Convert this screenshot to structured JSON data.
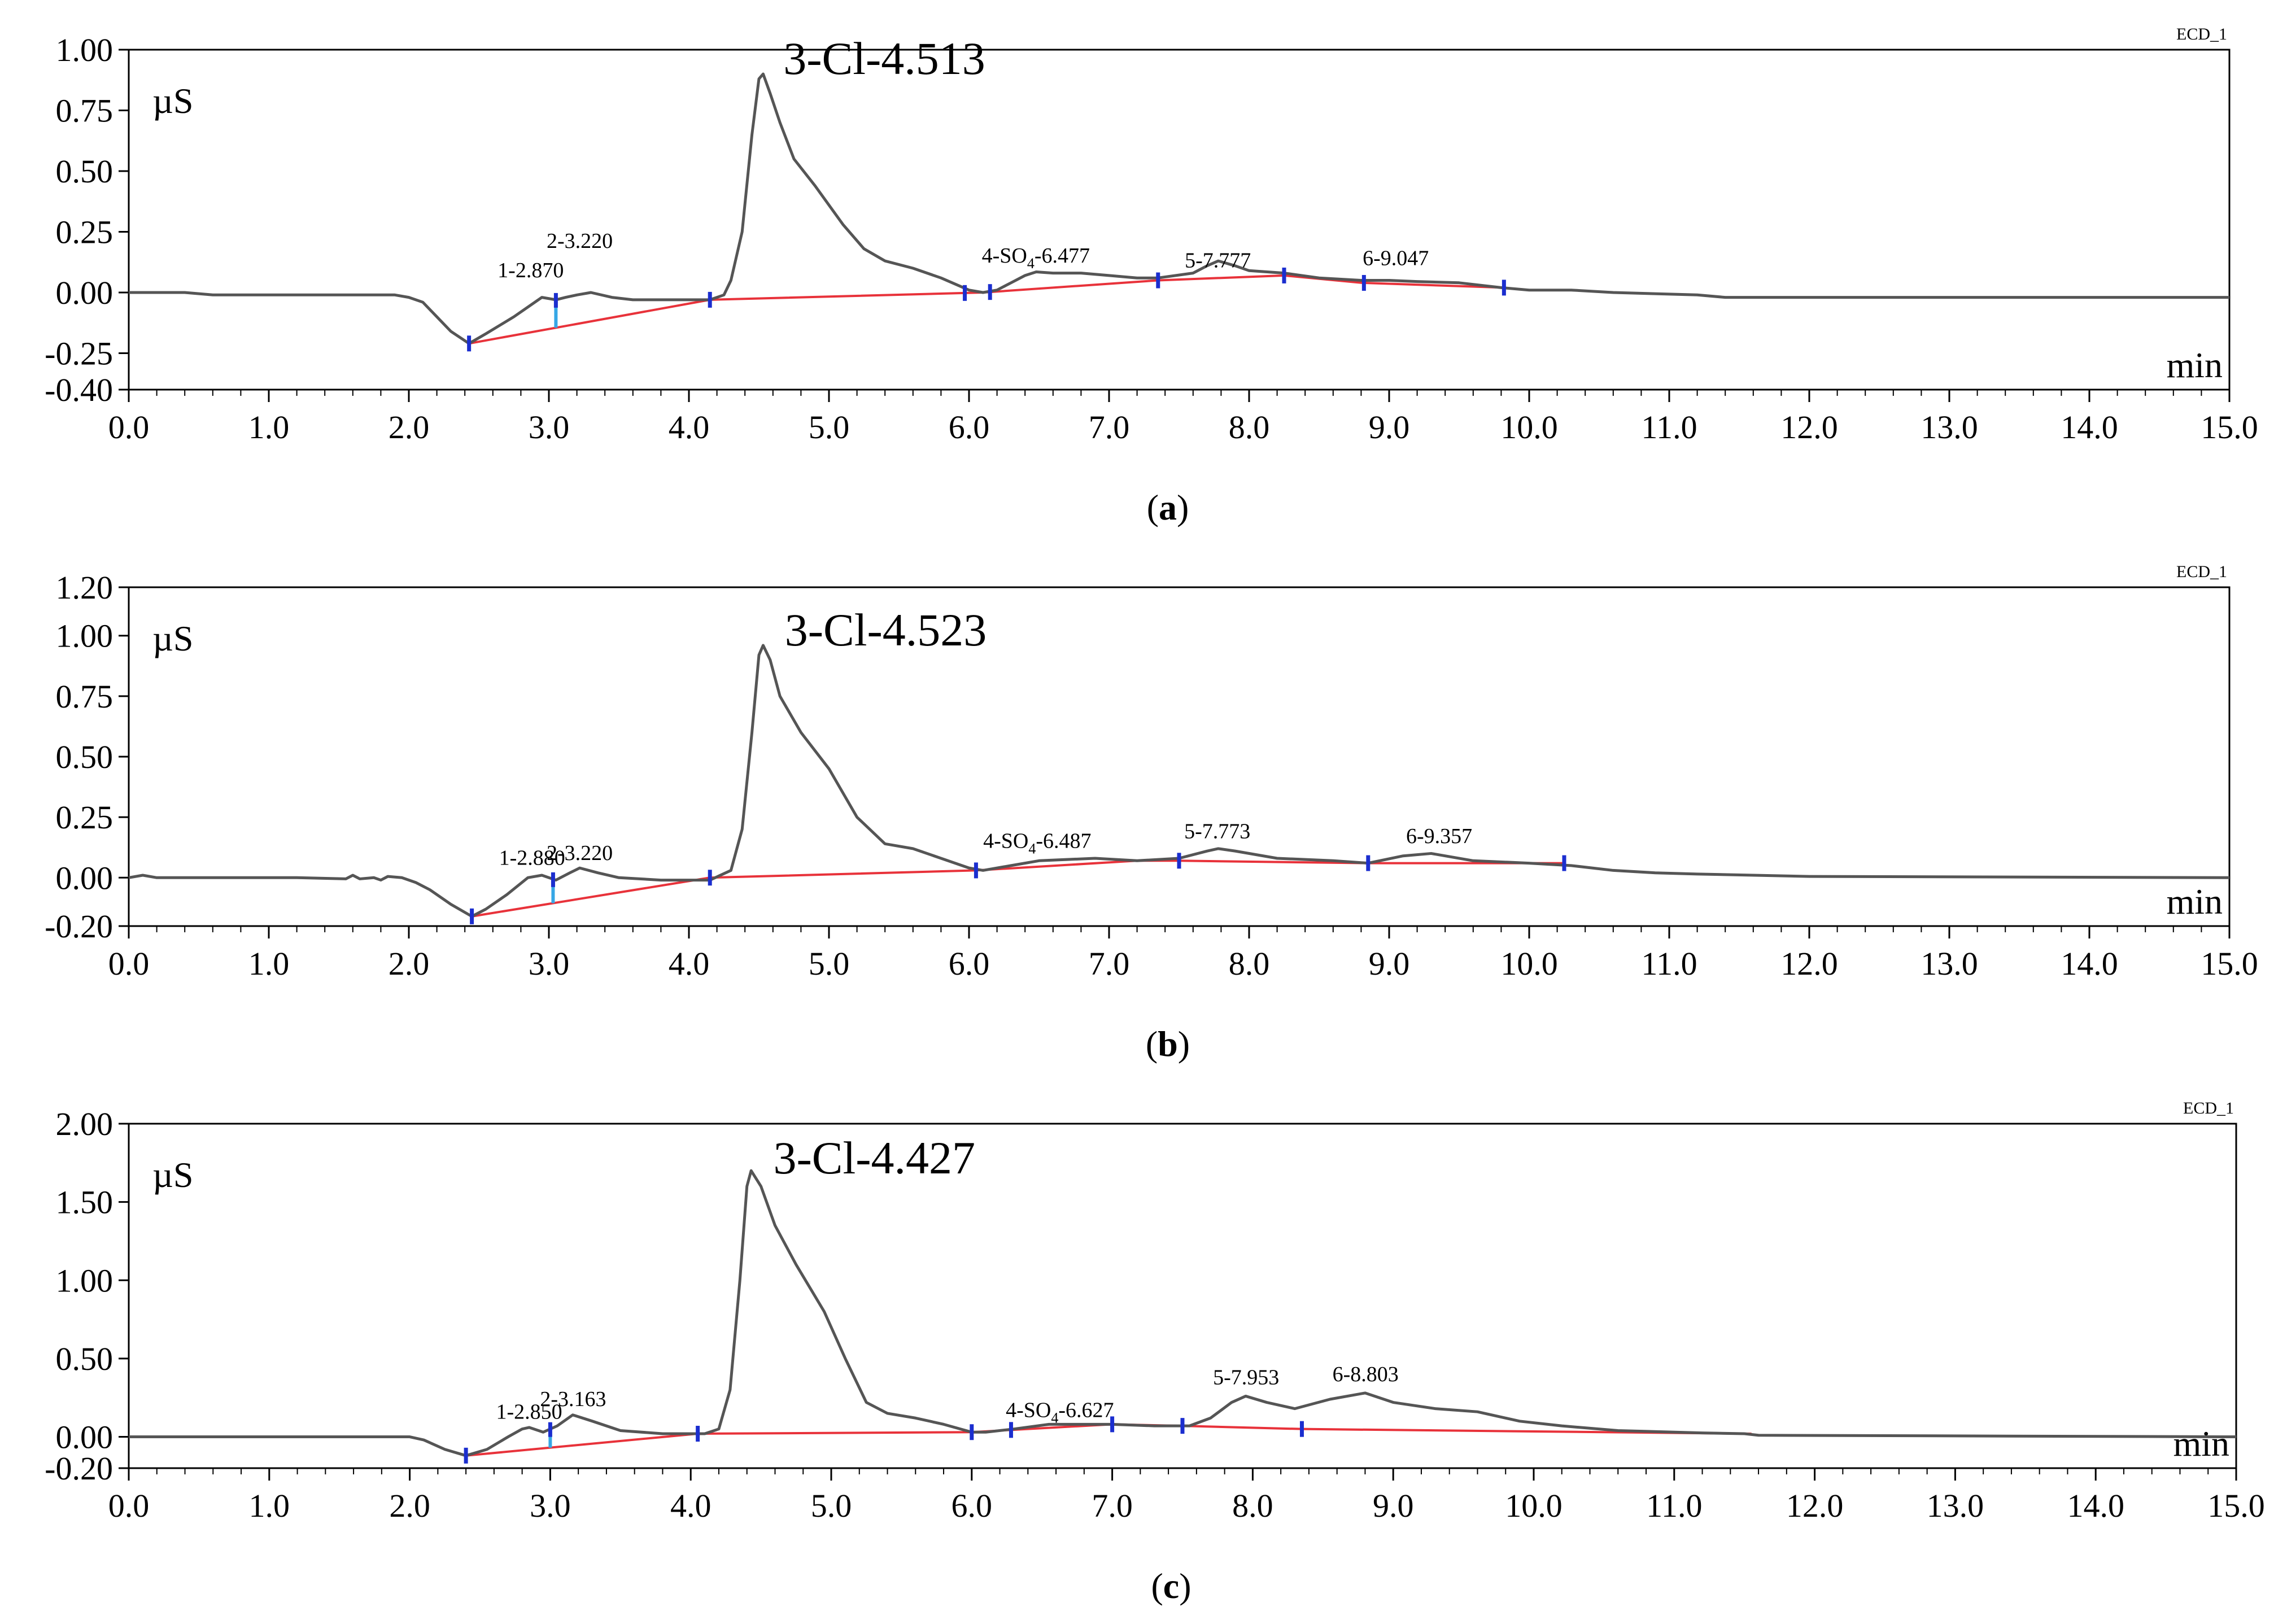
{
  "chart_data": [
    {
      "type": "line",
      "panel_label": "a",
      "channel_tag": "ECD_1",
      "ylabel": "µS",
      "xlabel": "min",
      "xlim": [
        0,
        15
      ],
      "ylim": [
        -0.4,
        1.0
      ],
      "x_ticks": [
        0,
        1,
        2,
        3,
        4,
        5,
        6,
        7,
        8,
        9,
        10,
        11,
        12,
        13,
        14,
        15
      ],
      "x_tick_labels": [
        "0.0",
        "1.0",
        "2.0",
        "3.0",
        "4.0",
        "5.0",
        "6.0",
        "7.0",
        "8.0",
        "9.0",
        "10.0",
        "11.0",
        "12.0",
        "13.0",
        "14.0",
        "15.0"
      ],
      "y_ticks": [
        -0.4,
        -0.25,
        0.0,
        0.25,
        0.5,
        0.75,
        1.0
      ],
      "y_tick_labels": [
        "-0.40",
        "-0.25",
        "0.00",
        "0.25",
        "0.50",
        "0.75",
        "1.00"
      ],
      "trace": [
        [
          0,
          0
        ],
        [
          0.4,
          0
        ],
        [
          0.6,
          -0.01
        ],
        [
          1.9,
          -0.01
        ],
        [
          2.0,
          -0.02
        ],
        [
          2.1,
          -0.04
        ],
        [
          2.2,
          -0.1
        ],
        [
          2.3,
          -0.16
        ],
        [
          2.43,
          -0.21
        ],
        [
          2.55,
          -0.17
        ],
        [
          2.75,
          -0.1
        ],
        [
          2.85,
          -0.06
        ],
        [
          2.95,
          -0.02
        ],
        [
          3.05,
          -0.03
        ],
        [
          3.12,
          -0.02
        ],
        [
          3.2,
          -0.01
        ],
        [
          3.3,
          0.0
        ],
        [
          3.45,
          -0.02
        ],
        [
          3.6,
          -0.03
        ],
        [
          4.0,
          -0.03
        ],
        [
          4.15,
          -0.03
        ],
        [
          4.25,
          -0.01
        ],
        [
          4.3,
          0.05
        ],
        [
          4.38,
          0.25
        ],
        [
          4.45,
          0.65
        ],
        [
          4.5,
          0.88
        ],
        [
          4.53,
          0.9
        ],
        [
          4.58,
          0.82
        ],
        [
          4.65,
          0.7
        ],
        [
          4.75,
          0.55
        ],
        [
          4.9,
          0.44
        ],
        [
          5.1,
          0.28
        ],
        [
          5.25,
          0.18
        ],
        [
          5.4,
          0.13
        ],
        [
          5.6,
          0.1
        ],
        [
          5.8,
          0.06
        ],
        [
          6.0,
          0.01
        ],
        [
          6.1,
          0.0
        ],
        [
          6.2,
          0.01
        ],
        [
          6.3,
          0.04
        ],
        [
          6.4,
          0.07
        ],
        [
          6.48,
          0.085
        ],
        [
          6.6,
          0.08
        ],
        [
          6.8,
          0.08
        ],
        [
          7.0,
          0.07
        ],
        [
          7.2,
          0.06
        ],
        [
          7.35,
          0.06
        ],
        [
          7.6,
          0.08
        ],
        [
          7.7,
          0.11
        ],
        [
          7.78,
          0.13
        ],
        [
          7.9,
          0.11
        ],
        [
          8.0,
          0.09
        ],
        [
          8.25,
          0.08
        ],
        [
          8.5,
          0.06
        ],
        [
          8.8,
          0.05
        ],
        [
          9.0,
          0.05
        ],
        [
          9.2,
          0.045
        ],
        [
          9.5,
          0.04
        ],
        [
          9.8,
          0.02
        ],
        [
          10.0,
          0.01
        ],
        [
          10.3,
          0.01
        ],
        [
          10.6,
          0.0
        ],
        [
          11.2,
          -0.01
        ],
        [
          11.4,
          -0.02
        ],
        [
          15.0,
          -0.02
        ]
      ],
      "baseline": [
        [
          2.43,
          -0.21
        ],
        [
          4.15,
          -0.03
        ],
        [
          6.1,
          0.0
        ],
        [
          7.35,
          0.05
        ],
        [
          8.25,
          0.07
        ],
        [
          8.8,
          0.04
        ],
        [
          9.82,
          0.02
        ]
      ],
      "markers_dark": [
        2.43,
        4.15,
        5.97,
        6.15,
        7.35,
        8.25,
        8.82,
        9.82
      ],
      "markers_light": [
        3.05
      ],
      "main_peak": {
        "label": "3-Cl-4.513",
        "x": 4.513
      },
      "peak_labels": [
        {
          "text": "1-2.870",
          "x": 2.87
        },
        {
          "text": "2-3.220",
          "x": 3.22
        },
        {
          "prefix": "4-SO",
          "sub": "4",
          "suffix": "-6.477",
          "x": 6.477
        },
        {
          "text": "5-7.777",
          "x": 7.777
        },
        {
          "text": "6-9.047",
          "x": 9.047
        }
      ]
    },
    {
      "type": "line",
      "panel_label": "b",
      "channel_tag": "ECD_1",
      "ylabel": "µS",
      "xlabel": "min",
      "xlim": [
        0,
        15
      ],
      "ylim": [
        -0.2,
        1.2
      ],
      "x_ticks": [
        0,
        1,
        2,
        3,
        4,
        5,
        6,
        7,
        8,
        9,
        10,
        11,
        12,
        13,
        14,
        15
      ],
      "x_tick_labels": [
        "0.0",
        "1.0",
        "2.0",
        "3.0",
        "4.0",
        "5.0",
        "6.0",
        "7.0",
        "8.0",
        "9.0",
        "10.0",
        "11.0",
        "12.0",
        "13.0",
        "14.0",
        "15.0"
      ],
      "y_ticks": [
        -0.2,
        0.0,
        0.25,
        0.5,
        0.75,
        1.0,
        1.2
      ],
      "y_tick_labels": [
        "-0.20",
        "0.00",
        "0.25",
        "0.50",
        "0.75",
        "1.00",
        "1.20"
      ],
      "trace": [
        [
          0,
          0.0
        ],
        [
          0.1,
          0.01
        ],
        [
          0.2,
          0.0
        ],
        [
          1.2,
          0.0
        ],
        [
          1.55,
          -0.005
        ],
        [
          1.6,
          0.01
        ],
        [
          1.65,
          -0.005
        ],
        [
          1.75,
          0.0
        ],
        [
          1.8,
          -0.01
        ],
        [
          1.85,
          0.005
        ],
        [
          1.95,
          0.0
        ],
        [
          2.05,
          -0.02
        ],
        [
          2.15,
          -0.05
        ],
        [
          2.3,
          -0.11
        ],
        [
          2.45,
          -0.16
        ],
        [
          2.55,
          -0.13
        ],
        [
          2.7,
          -0.07
        ],
        [
          2.85,
          0.0
        ],
        [
          2.95,
          0.01
        ],
        [
          3.05,
          -0.01
        ],
        [
          3.15,
          0.02
        ],
        [
          3.22,
          0.04
        ],
        [
          3.35,
          0.02
        ],
        [
          3.5,
          0.0
        ],
        [
          3.8,
          -0.01
        ],
        [
          4.15,
          -0.01
        ],
        [
          4.3,
          0.03
        ],
        [
          4.38,
          0.2
        ],
        [
          4.45,
          0.6
        ],
        [
          4.5,
          0.92
        ],
        [
          4.53,
          0.96
        ],
        [
          4.58,
          0.9
        ],
        [
          4.65,
          0.75
        ],
        [
          4.8,
          0.6
        ],
        [
          5.0,
          0.45
        ],
        [
          5.2,
          0.25
        ],
        [
          5.4,
          0.14
        ],
        [
          5.6,
          0.12
        ],
        [
          5.8,
          0.08
        ],
        [
          6.0,
          0.04
        ],
        [
          6.1,
          0.03
        ],
        [
          6.3,
          0.05
        ],
        [
          6.5,
          0.07
        ],
        [
          6.9,
          0.08
        ],
        [
          7.2,
          0.07
        ],
        [
          7.5,
          0.08
        ],
        [
          7.7,
          0.11
        ],
        [
          7.78,
          0.12
        ],
        [
          7.9,
          0.11
        ],
        [
          8.2,
          0.08
        ],
        [
          8.6,
          0.07
        ],
        [
          8.85,
          0.06
        ],
        [
          9.1,
          0.09
        ],
        [
          9.3,
          0.1
        ],
        [
          9.6,
          0.07
        ],
        [
          10.0,
          0.06
        ],
        [
          10.3,
          0.05
        ],
        [
          10.6,
          0.03
        ],
        [
          10.9,
          0.02
        ],
        [
          11.2,
          0.015
        ],
        [
          12.0,
          0.005
        ],
        [
          15.0,
          0.0
        ]
      ],
      "baseline": [
        [
          2.45,
          -0.16
        ],
        [
          4.15,
          0.0
        ],
        [
          6.05,
          0.03
        ],
        [
          7.2,
          0.07
        ],
        [
          7.5,
          0.07
        ],
        [
          8.85,
          0.06
        ],
        [
          10.25,
          0.06
        ]
      ],
      "markers_dark": [
        2.45,
        4.15,
        6.05,
        7.5,
        8.85,
        10.25
      ],
      "markers_light": [
        3.03
      ],
      "main_peak": {
        "label": "3-Cl-4.523",
        "x": 4.523
      },
      "peak_labels": [
        {
          "text": "1-2.880",
          "x": 2.88
        },
        {
          "text": "2-3.220",
          "x": 3.22
        },
        {
          "prefix": "4-SO",
          "sub": "4",
          "suffix": "-6.487",
          "x": 6.487
        },
        {
          "text": "5-7.773",
          "x": 7.773
        },
        {
          "text": "6-9.357",
          "x": 9.357
        }
      ]
    },
    {
      "type": "line",
      "panel_label": "c",
      "channel_tag": "ECD_1",
      "ylabel": "µS",
      "xlabel": "min",
      "xlim": [
        0,
        15
      ],
      "ylim": [
        -0.2,
        2.0
      ],
      "x_ticks": [
        0,
        1,
        2,
        3,
        4,
        5,
        6,
        7,
        8,
        9,
        10,
        11,
        12,
        13,
        14,
        15
      ],
      "x_tick_labels": [
        "0.0",
        "1.0",
        "2.0",
        "3.0",
        "4.0",
        "5.0",
        "6.0",
        "7.0",
        "8.0",
        "9.0",
        "10.0",
        "11.0",
        "12.0",
        "13.0",
        "14.0",
        "15.0"
      ],
      "y_ticks": [
        -0.2,
        0.0,
        0.5,
        1.0,
        1.5,
        2.0
      ],
      "y_tick_labels": [
        "-0.20",
        "0.00",
        "0.50",
        "1.00",
        "1.50",
        "2.00"
      ],
      "trace": [
        [
          0,
          0.0
        ],
        [
          2.0,
          0.0
        ],
        [
          2.1,
          -0.02
        ],
        [
          2.25,
          -0.08
        ],
        [
          2.4,
          -0.12
        ],
        [
          2.55,
          -0.08
        ],
        [
          2.7,
          0.0
        ],
        [
          2.8,
          0.05
        ],
        [
          2.85,
          0.06
        ],
        [
          2.95,
          0.03
        ],
        [
          3.05,
          0.07
        ],
        [
          3.16,
          0.14
        ],
        [
          3.3,
          0.1
        ],
        [
          3.5,
          0.04
        ],
        [
          3.8,
          0.02
        ],
        [
          4.1,
          0.02
        ],
        [
          4.2,
          0.05
        ],
        [
          4.28,
          0.3
        ],
        [
          4.35,
          1.0
        ],
        [
          4.4,
          1.6
        ],
        [
          4.43,
          1.7
        ],
        [
          4.5,
          1.6
        ],
        [
          4.6,
          1.35
        ],
        [
          4.75,
          1.1
        ],
        [
          4.95,
          0.8
        ],
        [
          5.1,
          0.5
        ],
        [
          5.25,
          0.22
        ],
        [
          5.4,
          0.15
        ],
        [
          5.6,
          0.12
        ],
        [
          5.8,
          0.08
        ],
        [
          6.0,
          0.03
        ],
        [
          6.1,
          0.03
        ],
        [
          6.3,
          0.05
        ],
        [
          6.55,
          0.08
        ],
        [
          6.8,
          0.08
        ],
        [
          7.0,
          0.08
        ],
        [
          7.3,
          0.07
        ],
        [
          7.55,
          0.07
        ],
        [
          7.7,
          0.12
        ],
        [
          7.85,
          0.22
        ],
        [
          7.95,
          0.26
        ],
        [
          8.1,
          0.22
        ],
        [
          8.3,
          0.18
        ],
        [
          8.55,
          0.24
        ],
        [
          8.8,
          0.28
        ],
        [
          9.0,
          0.22
        ],
        [
          9.3,
          0.18
        ],
        [
          9.6,
          0.16
        ],
        [
          9.9,
          0.1
        ],
        [
          10.2,
          0.07
        ],
        [
          10.6,
          0.04
        ],
        [
          11.2,
          0.025
        ],
        [
          11.5,
          0.02
        ],
        [
          11.6,
          0.01
        ],
        [
          15.0,
          0.0
        ]
      ],
      "baseline": [
        [
          2.4,
          -0.12
        ],
        [
          4.05,
          0.02
        ],
        [
          6.0,
          0.03
        ],
        [
          7.0,
          0.08
        ],
        [
          7.5,
          0.07
        ],
        [
          8.35,
          0.05
        ],
        [
          11.55,
          0.02
        ]
      ],
      "markers_dark": [
        2.4,
        4.05,
        6.0,
        6.28,
        7.0,
        7.5,
        8.35
      ],
      "markers_light": [
        3.0
      ],
      "main_peak": {
        "label": "3-Cl-4.427",
        "x": 4.427
      },
      "peak_labels": [
        {
          "text": "1-2.850",
          "x": 2.85
        },
        {
          "text": "2-3.163",
          "x": 3.163
        },
        {
          "prefix": "4-SO",
          "sub": "4",
          "suffix": "-6.627",
          "x": 6.627
        },
        {
          "text": "5-7.953",
          "x": 7.953
        },
        {
          "text": "6-8.803",
          "x": 8.803
        }
      ]
    }
  ],
  "colors": {
    "axis": "#000000",
    "trace": "#555555",
    "baseline": "#e8323a",
    "marker_dark": "#1b2ecf",
    "marker_light": "#36a7e6"
  }
}
